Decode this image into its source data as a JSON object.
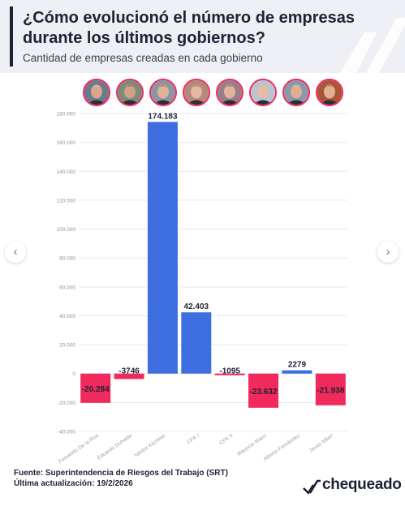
{
  "header": {
    "title": "¿Cómo evolucionó el número de empresas durante los últimos gobiernos?",
    "subtitle": "Cantidad de empresas creadas en cada gobierno"
  },
  "colors": {
    "positive": "#3f6ee0",
    "negative": "#f02a5c",
    "dark": "#1e2235",
    "accent": "#f02a5c"
  },
  "avatars": [
    {
      "name": "Fernando De la Rúa",
      "bg": "#6c7a8c",
      "skin": "#d9a78c",
      "hair": "#e8e8e8"
    },
    {
      "name": "Eduardo Duhalde",
      "bg": "#7e8a7a",
      "skin": "#d2a085",
      "hair": "#2b2b2b"
    },
    {
      "name": "Néstor Kirchner",
      "bg": "#8a95a6",
      "skin": "#e0b296",
      "hair": "#3a2f2a"
    },
    {
      "name": "CFK I",
      "bg": "#b08a7a",
      "skin": "#e4b89e",
      "hair": "#3a2418"
    },
    {
      "name": "CFK II",
      "bg": "#9a7d88",
      "skin": "#e1b39a",
      "hair": "#2e1d17"
    },
    {
      "name": "Mauricio Macri",
      "bg": "#b9c4d4",
      "skin": "#e6bda3",
      "hair": "#c9b48a"
    },
    {
      "name": "Alberto Fernández",
      "bg": "#8d97aa",
      "skin": "#dcae92",
      "hair": "#d8d8d8"
    },
    {
      "name": "Javier Milei",
      "bg": "#a7563a",
      "skin": "#e3b094",
      "hair": "#4a3322"
    }
  ],
  "nav": {
    "prev_icon": "‹",
    "next_icon": "›"
  },
  "chart_data": {
    "type": "bar",
    "categories": [
      "Fernando De la Rúa",
      "Eduardo Duhalde",
      "Néstor Kirchner",
      "CFK I",
      "CFK II",
      "Mauricio Macri",
      "Alberto Fernández",
      "Javier Milei*"
    ],
    "values": [
      -20284,
      -3746,
      174183,
      42403,
      -1095,
      -23632,
      2279,
      -21938
    ],
    "value_labels": [
      "-20.284",
      "-3746",
      "174.183",
      "42.403",
      "-1095",
      "-23.632",
      "2279",
      "-21.938"
    ],
    "ylim": [
      -40000,
      180000
    ],
    "y_ticks": [
      -40000,
      -20000,
      0,
      20000,
      40000,
      60000,
      80000,
      100000,
      120000,
      140000,
      160000,
      180000
    ],
    "y_tick_labels": [
      "-40.000",
      "-20.000",
      "0",
      "20.000",
      "40.000",
      "60.000",
      "80.000",
      "100.000",
      "120.000",
      "140.000",
      "160.000",
      "180.000"
    ],
    "grid": true
  },
  "footer": {
    "source": "Fuente: Superintendencia de Riesgos del Trabajo (SRT)",
    "updated": "Última actualización: 19/2/2026"
  },
  "brand": {
    "name": "chequeado"
  }
}
